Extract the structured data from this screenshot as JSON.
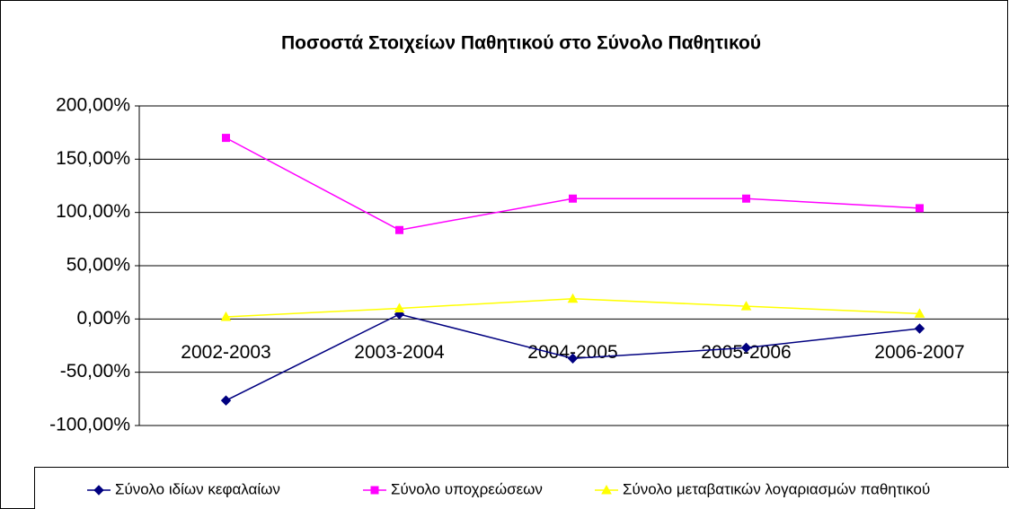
{
  "chart_data": {
    "type": "line",
    "title": "Ποσοστά Στοιχείων Παθητικού στο Σύνολο Παθητικού",
    "categories": [
      "2002-2003",
      "2003-2004",
      "2004-2005",
      "2005-2006",
      "2006-2007"
    ],
    "series": [
      {
        "name": "Σύνολο ιδίων κεφαλαίων",
        "color": "#000080",
        "marker": "diamond",
        "values": [
          -76.5,
          4.5,
          -37,
          -27,
          -9
        ]
      },
      {
        "name": "Σύνολο υποχρεώσεων",
        "color": "#ff00ff",
        "marker": "square",
        "values": [
          170,
          83.5,
          113,
          113,
          104
        ]
      },
      {
        "name": "Σύνολο μεταβατικών λογαριασμών παθητικού",
        "color": "#ffff00",
        "marker": "triangle",
        "values": [
          2,
          10,
          19,
          12,
          5
        ]
      }
    ],
    "ylim": [
      -100,
      200
    ],
    "yticks": [
      {
        "value": -100,
        "label": "-100,00%"
      },
      {
        "value": -50,
        "label": "-50,00%"
      },
      {
        "value": 0,
        "label": "0,00%"
      },
      {
        "value": 50,
        "label": "50,00%"
      },
      {
        "value": 100,
        "label": "100,00%"
      },
      {
        "value": 150,
        "label": "150,00%"
      },
      {
        "value": 200,
        "label": "200,00%"
      }
    ],
    "grid": true,
    "legend": "bottom"
  }
}
